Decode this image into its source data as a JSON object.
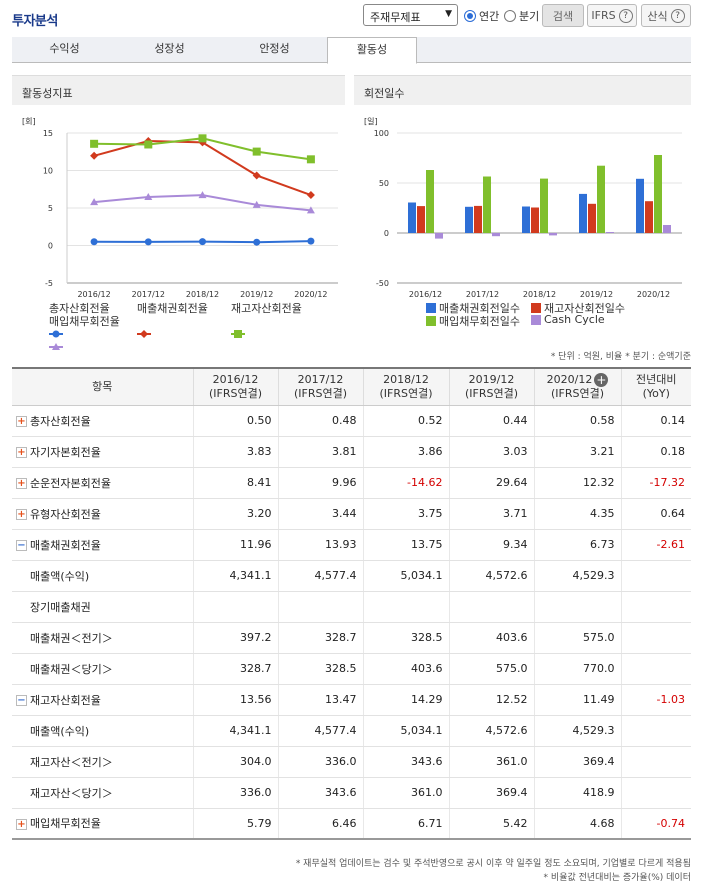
{
  "header": {
    "title": "투자분석",
    "select_value": "주재무제표",
    "radio_annual": "연간",
    "radio_quarter": "분기",
    "search_label": "검색",
    "ifrs_label": "IFRS",
    "formula_label": "산식"
  },
  "tabs": [
    "수익성",
    "성장성",
    "안정성",
    "활동성"
  ],
  "charts": {
    "left_title": "활동성지표",
    "right_title": "회전일수"
  },
  "chart_data": [
    {
      "type": "line",
      "ylabel": "[회]",
      "ylim": [
        -5,
        15
      ],
      "yticks": [
        15,
        10,
        5,
        0,
        -5
      ],
      "categories": [
        "2016/12",
        "2017/12",
        "2018/12",
        "2019/12",
        "2020/12"
      ],
      "legend_position": "bottom",
      "series": [
        {
          "name": "총자산회전율",
          "color": "#2e6fd6",
          "marker": "circle",
          "values": [
            0.5,
            0.48,
            0.52,
            0.44,
            0.58
          ]
        },
        {
          "name": "매출채권회전율",
          "color": "#d13a1e",
          "marker": "diamond",
          "values": [
            11.96,
            13.93,
            13.75,
            9.34,
            6.73
          ]
        },
        {
          "name": "재고자산회전율",
          "color": "#80bf2c",
          "marker": "square",
          "values": [
            13.56,
            13.47,
            14.29,
            12.52,
            11.49
          ]
        },
        {
          "name": "매입채무회전율",
          "color": "#a98ad8",
          "marker": "triangle",
          "values": [
            5.79,
            6.46,
            6.71,
            5.42,
            4.68
          ]
        }
      ]
    },
    {
      "type": "bar",
      "ylabel": "[일]",
      "ylim": [
        -50,
        100
      ],
      "yticks": [
        100,
        50,
        0,
        -50
      ],
      "categories": [
        "2016/12",
        "2017/12",
        "2018/12",
        "2019/12",
        "2020/12"
      ],
      "legend_position": "bottom",
      "series": [
        {
          "name": "매출채권회전일수",
          "color": "#2e6fd6",
          "values": [
            30.5,
            26.2,
            26.5,
            39.1,
            54.2
          ]
        },
        {
          "name": "재고자산회전일수",
          "color": "#d13a1e",
          "values": [
            26.9,
            27.1,
            25.5,
            29.2,
            31.8
          ]
        },
        {
          "name": "매입채무회전일수",
          "color": "#80bf2c",
          "values": [
            63.0,
            56.5,
            54.4,
            67.3,
            78.0
          ]
        },
        {
          "name": "Cash Cycle",
          "color": "#a98ad8",
          "values": [
            -5.6,
            -3.2,
            -2.4,
            1.0,
            8.0
          ]
        }
      ]
    }
  ],
  "table": {
    "unit_note": "* 단위 : 억원, 비율   * 분기 : 순액기준",
    "headers": [
      {
        "l1": "항목",
        "l2": ""
      },
      {
        "l1": "2016/12",
        "l2": "(IFRS연결)"
      },
      {
        "l1": "2017/12",
        "l2": "(IFRS연결)"
      },
      {
        "l1": "2018/12",
        "l2": "(IFRS연결)"
      },
      {
        "l1": "2019/12",
        "l2": "(IFRS연결)"
      },
      {
        "l1": "2020/12",
        "l2": "(IFRS연결)"
      },
      {
        "l1": "전년대비",
        "l2": "(YoY)"
      }
    ],
    "rows": [
      {
        "label": "총자산회전율",
        "expand": "plus",
        "vals": [
          "0.50",
          "0.48",
          "0.52",
          "0.44",
          "0.58",
          "0.14"
        ]
      },
      {
        "label": "자기자본회전율",
        "expand": "plus",
        "vals": [
          "3.83",
          "3.81",
          "3.86",
          "3.03",
          "3.21",
          "0.18"
        ]
      },
      {
        "label": "순운전자본회전율",
        "expand": "plus",
        "vals": [
          "8.41",
          "9.96",
          "-14.62",
          "29.64",
          "12.32",
          "-17.32"
        ]
      },
      {
        "label": "유형자산회전율",
        "expand": "plus",
        "vals": [
          "3.20",
          "3.44",
          "3.75",
          "3.71",
          "4.35",
          "0.64"
        ]
      },
      {
        "label": "매출채권회전율",
        "expand": "minus",
        "vals": [
          "11.96",
          "13.93",
          "13.75",
          "9.34",
          "6.73",
          "-2.61"
        ]
      },
      {
        "label": "매출액(수익)",
        "expand": "",
        "vals": [
          "4,341.1",
          "4,577.4",
          "5,034.1",
          "4,572.6",
          "4,529.3",
          ""
        ]
      },
      {
        "label": "장기매출채권",
        "expand": "",
        "vals": [
          "",
          "",
          "",
          "",
          "",
          ""
        ]
      },
      {
        "label": "매출채권＜전기＞",
        "expand": "",
        "vals": [
          "397.2",
          "328.7",
          "328.5",
          "403.6",
          "575.0",
          ""
        ]
      },
      {
        "label": "매출채권＜당기＞",
        "expand": "",
        "vals": [
          "328.7",
          "328.5",
          "403.6",
          "575.0",
          "770.0",
          ""
        ]
      },
      {
        "label": "재고자산회전율",
        "expand": "minus",
        "vals": [
          "13.56",
          "13.47",
          "14.29",
          "12.52",
          "11.49",
          "-1.03"
        ]
      },
      {
        "label": "매출액(수익)",
        "expand": "",
        "vals": [
          "4,341.1",
          "4,577.4",
          "5,034.1",
          "4,572.6",
          "4,529.3",
          ""
        ]
      },
      {
        "label": "재고자산＜전기＞",
        "expand": "",
        "vals": [
          "304.0",
          "336.0",
          "343.6",
          "361.0",
          "369.4",
          ""
        ]
      },
      {
        "label": "재고자산＜당기＞",
        "expand": "",
        "vals": [
          "336.0",
          "343.6",
          "361.0",
          "369.4",
          "418.9",
          ""
        ]
      },
      {
        "label": "매입채무회전율",
        "expand": "plus",
        "vals": [
          "5.79",
          "6.46",
          "6.71",
          "5.42",
          "4.68",
          "-0.74"
        ]
      }
    ]
  },
  "footnotes": [
    "* 재무실적 업데이트는 검수 및 주석반영으로 공시 이후 약 일주일 정도 소요되며, 기업별로 다르게 적용됨",
    "* 비율값 전년대비는 증가율(%) 데이터"
  ]
}
